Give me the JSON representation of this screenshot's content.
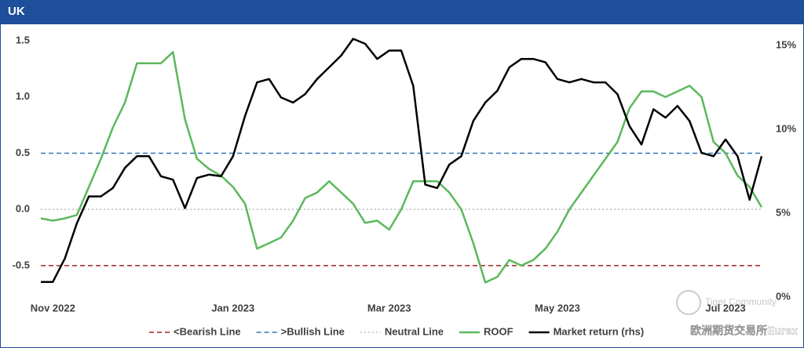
{
  "chart_data": {
    "type": "line",
    "title": "UK",
    "categories": [
      null,
      "Nov 2022",
      null,
      null,
      null,
      null,
      null,
      null,
      null,
      null,
      null,
      null,
      null,
      null,
      null,
      null,
      "Jan 2023",
      null,
      null,
      null,
      null,
      null,
      null,
      null,
      null,
      null,
      null,
      null,
      null,
      "Mar 2023",
      null,
      null,
      null,
      null,
      null,
      null,
      null,
      null,
      null,
      null,
      null,
      null,
      null,
      "May 2023",
      null,
      null,
      null,
      null,
      null,
      null,
      null,
      null,
      null,
      null,
      null,
      null,
      null,
      "Jul 2023",
      null,
      null,
      null
    ],
    "ylim": [
      -0.78,
      1.57
    ],
    "yticks": [
      -0.5,
      {
        "value": 0,
        "label": "0.0"
      },
      0.5,
      {
        "value": 1,
        "label": "1.0"
      },
      1.5
    ],
    "y2lim": [
      0,
      15.75
    ],
    "y2ticks": [
      {
        "value": 0,
        "label": "0%"
      },
      {
        "value": 5,
        "label": "5%"
      },
      {
        "value": 10,
        "label": "10%"
      },
      {
        "value": 15,
        "label": "15%"
      }
    ],
    "reference_lines": [
      {
        "name": "<Bearish Line",
        "value": -0.5,
        "color": "#a02020",
        "dash": "6 4"
      },
      {
        "name": ">Bullish Line",
        "value": 0.5,
        "color": "#2e75b6",
        "dash": "6 4"
      },
      {
        "name": "Neutral Line",
        "value": 0,
        "color": "#bfbfbf",
        "dash": "2 3"
      }
    ],
    "series": [
      {
        "name": "ROOF",
        "color": "#5cb85c",
        "values": [
          -0.08,
          -0.1,
          -0.08,
          -0.05,
          0.2,
          0.45,
          0.73,
          0.95,
          1.3,
          1.3,
          1.3,
          1.4,
          0.8,
          0.45,
          0.36,
          0.3,
          0.2,
          0.05,
          -0.35,
          -0.3,
          -0.25,
          -0.1,
          0.1,
          0.15,
          0.25,
          0.15,
          0.05,
          -0.12,
          -0.1,
          -0.18,
          0.0,
          0.25,
          0.25,
          0.25,
          0.15,
          0.0,
          -0.3,
          -0.65,
          -0.6,
          -0.45,
          -0.5,
          -0.45,
          -0.35,
          -0.2,
          0.0,
          0.15,
          0.3,
          0.45,
          0.6,
          0.9,
          1.05,
          1.05,
          1.0,
          1.05,
          1.1,
          1.0,
          0.6,
          0.5,
          0.3,
          0.2,
          0.02
        ]
      },
      {
        "name": "Market return (rhs)",
        "color": "#000000",
        "axis": "y2",
        "values": [
          0.9,
          0.9,
          2.3,
          4.4,
          6.0,
          6.0,
          6.5,
          7.7,
          8.4,
          8.4,
          7.2,
          7.0,
          5.3,
          7.1,
          7.3,
          7.2,
          8.4,
          10.8,
          12.8,
          13.0,
          11.9,
          11.6,
          12.1,
          13.0,
          13.7,
          14.4,
          15.4,
          15.1,
          14.2,
          14.7,
          14.7,
          12.6,
          6.7,
          6.5,
          7.9,
          8.4,
          10.5,
          11.6,
          12.3,
          13.7,
          14.2,
          14.2,
          14.0,
          13.0,
          12.8,
          13.0,
          12.8,
          12.8,
          12.1,
          10.2,
          9.1,
          11.2,
          10.7,
          11.4,
          10.5,
          8.6,
          8.4,
          9.4,
          8.4,
          5.8,
          8.4
        ]
      }
    ],
    "watermark": "Tiger Community",
    "source": "欧洲期货交易所Eurex"
  }
}
